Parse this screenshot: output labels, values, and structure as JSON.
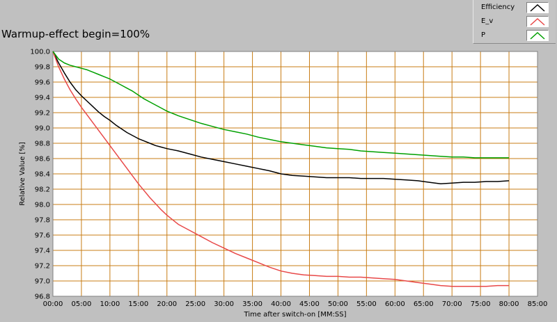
{
  "chart_data": {
    "type": "line",
    "title": "Warmup-effect begin=100%",
    "xlabel": "Time after switch-on [MM:SS]",
    "ylabel": "Relative Value [%]",
    "xlim": [
      0,
      85
    ],
    "ylim": [
      96.8,
      100.0
    ],
    "x_ticks": [
      0,
      5,
      10,
      15,
      20,
      25,
      30,
      35,
      40,
      45,
      50,
      55,
      60,
      65,
      70,
      75,
      80,
      85
    ],
    "x_tick_labels": [
      "00:00",
      "05:00",
      "10:00",
      "15:00",
      "20:00",
      "25:00",
      "30:00",
      "35:00",
      "40:00",
      "45:00",
      "50:00",
      "55:00",
      "60:00",
      "65:00",
      "70:00",
      "75:00",
      "80:00",
      "85:00"
    ],
    "y_ticks": [
      96.8,
      97.0,
      97.2,
      97.4,
      97.6,
      97.8,
      98.0,
      98.2,
      98.4,
      98.6,
      98.8,
      99.0,
      99.2,
      99.4,
      99.6,
      99.8,
      100.0
    ],
    "y_tick_labels": [
      "96.8",
      "97.0",
      "97.2",
      "97.4",
      "97.6",
      "97.8",
      "98.0",
      "98.2",
      "98.4",
      "98.6",
      "98.8",
      "99.0",
      "99.2",
      "99.4",
      "99.6",
      "99.8",
      "100.0"
    ],
    "grid": true,
    "legend_position": "top-right",
    "colors": {
      "plot_background": "#ffffff",
      "grid": "#c87c14",
      "frame": "#c0c0c0"
    },
    "series": [
      {
        "name": "Efficiency",
        "color": "#000000",
        "x": [
          0,
          1,
          2,
          3,
          4,
          5,
          6,
          7,
          8,
          9,
          10,
          11,
          12,
          13,
          14,
          15,
          16,
          17,
          18,
          19,
          20,
          22,
          24,
          26,
          28,
          30,
          32,
          34,
          36,
          38,
          40,
          42,
          44,
          46,
          48,
          50,
          52,
          54,
          56,
          58,
          60,
          62,
          64,
          66,
          68,
          70,
          72,
          74,
          76,
          78,
          80
        ],
        "y": [
          100.0,
          99.85,
          99.72,
          99.6,
          99.5,
          99.42,
          99.35,
          99.28,
          99.21,
          99.15,
          99.1,
          99.04,
          98.99,
          98.94,
          98.9,
          98.86,
          98.83,
          98.8,
          98.77,
          98.75,
          98.73,
          98.7,
          98.66,
          98.62,
          98.59,
          98.56,
          98.53,
          98.5,
          98.47,
          98.44,
          98.4,
          98.38,
          98.37,
          98.36,
          98.35,
          98.35,
          98.35,
          98.34,
          98.34,
          98.34,
          98.33,
          98.32,
          98.31,
          98.29,
          98.27,
          98.28,
          98.29,
          98.29,
          98.3,
          98.3,
          98.31
        ]
      },
      {
        "name": "E_v",
        "color": "#e84848",
        "x": [
          0,
          1,
          2,
          3,
          4,
          5,
          6,
          7,
          8,
          9,
          10,
          11,
          12,
          13,
          14,
          15,
          16,
          17,
          18,
          19,
          20,
          22,
          24,
          26,
          28,
          30,
          32,
          34,
          36,
          38,
          40,
          42,
          44,
          46,
          48,
          50,
          52,
          54,
          56,
          58,
          60,
          62,
          64,
          66,
          68,
          70,
          72,
          74,
          76,
          78,
          80
        ],
        "y": [
          100.0,
          99.8,
          99.64,
          99.5,
          99.38,
          99.27,
          99.17,
          99.07,
          98.97,
          98.87,
          98.77,
          98.67,
          98.57,
          98.47,
          98.37,
          98.27,
          98.18,
          98.09,
          98.01,
          97.93,
          97.86,
          97.74,
          97.66,
          97.58,
          97.5,
          97.43,
          97.36,
          97.3,
          97.24,
          97.18,
          97.13,
          97.1,
          97.08,
          97.07,
          97.06,
          97.06,
          97.05,
          97.05,
          97.04,
          97.03,
          97.02,
          97.0,
          96.98,
          96.96,
          96.94,
          96.93,
          96.93,
          96.93,
          96.93,
          96.94,
          96.94
        ]
      },
      {
        "name": "P",
        "color": "#00a000",
        "x": [
          0,
          1,
          2,
          3,
          4,
          5,
          6,
          7,
          8,
          9,
          10,
          11,
          12,
          13,
          14,
          15,
          16,
          17,
          18,
          19,
          20,
          22,
          24,
          26,
          28,
          30,
          32,
          34,
          36,
          38,
          40,
          42,
          44,
          46,
          48,
          50,
          52,
          54,
          56,
          58,
          60,
          62,
          64,
          66,
          68,
          70,
          72,
          74,
          76,
          78,
          80
        ],
        "y": [
          100.0,
          99.9,
          99.85,
          99.82,
          99.8,
          99.78,
          99.76,
          99.73,
          99.7,
          99.67,
          99.64,
          99.6,
          99.56,
          99.52,
          99.48,
          99.43,
          99.38,
          99.34,
          99.3,
          99.26,
          99.22,
          99.16,
          99.11,
          99.06,
          99.02,
          98.98,
          98.95,
          98.92,
          98.88,
          98.85,
          98.82,
          98.8,
          98.78,
          98.76,
          98.74,
          98.73,
          98.72,
          98.7,
          98.69,
          98.68,
          98.67,
          98.66,
          98.65,
          98.64,
          98.63,
          98.62,
          98.62,
          98.61,
          98.61,
          98.61,
          98.61
        ]
      }
    ]
  }
}
